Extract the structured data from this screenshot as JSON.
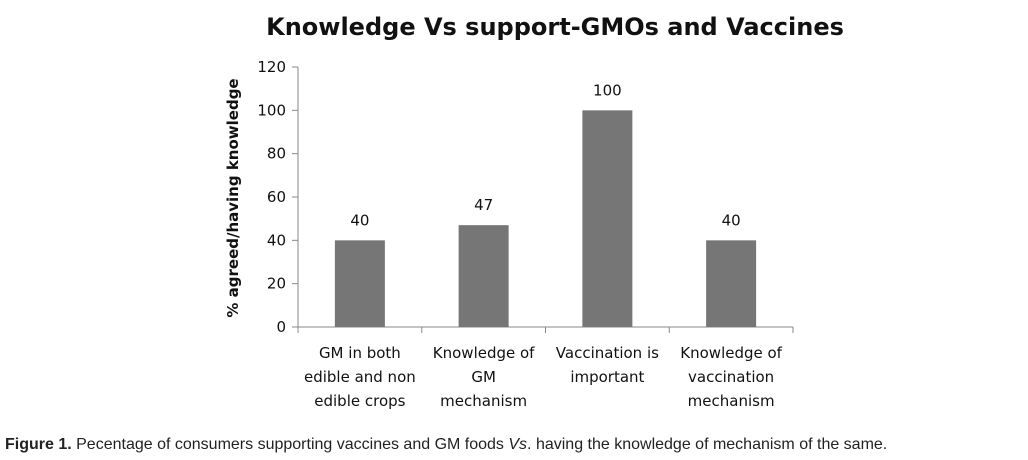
{
  "chart_data": {
    "type": "bar",
    "title": "Knowledge Vs support-GMOs and Vaccines",
    "ylabel": "% agreed/having knowledge",
    "xlabel": "",
    "ylim": [
      0,
      120
    ],
    "yticks": [
      0,
      20,
      40,
      60,
      80,
      100,
      120
    ],
    "categories": [
      [
        "GM in both",
        "edible and non",
        "edible crops"
      ],
      [
        "Knowledge of",
        "GM",
        "mechanism"
      ],
      [
        "Vaccination is",
        "important"
      ],
      [
        "Knowledge of",
        "vaccination",
        "mechanism"
      ]
    ],
    "values": [
      40,
      47,
      100,
      40
    ],
    "bar_color": "#767676",
    "grid": false,
    "legend": "none"
  },
  "caption": {
    "label": "Figure 1.",
    "text_before": " Pecentage of consumers supporting vaccines and GM foods ",
    "italic": "Vs",
    "text_after": ". having the knowledge of mechanism of the same."
  }
}
